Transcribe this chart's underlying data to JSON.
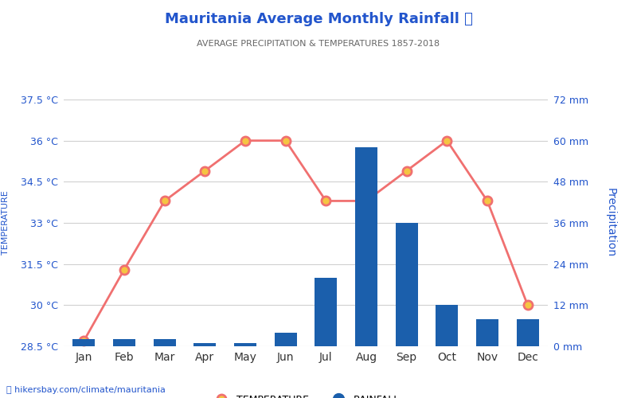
{
  "title": "Mauritania Average Monthly Rainfall ☂",
  "subtitle": "AVERAGE PRECIPITATION & TEMPERATURES 1857-2018",
  "months": [
    "Jan",
    "Feb",
    "Mar",
    "Apr",
    "May",
    "Jun",
    "Jul",
    "Aug",
    "Sep",
    "Oct",
    "Nov",
    "Dec"
  ],
  "temperature": [
    28.7,
    31.3,
    33.8,
    34.9,
    36.0,
    36.0,
    33.8,
    33.8,
    34.9,
    36.0,
    33.8,
    30.0
  ],
  "rainfall_mm": [
    2,
    2,
    2,
    1,
    1,
    4,
    20,
    58,
    36,
    12,
    8,
    8
  ],
  "temp_ylim": [
    28.5,
    37.5
  ],
  "rain_ylim": [
    0,
    72
  ],
  "temp_yticks": [
    28.5,
    30.0,
    31.5,
    33.0,
    34.5,
    36.0,
    37.5
  ],
  "temp_yticklabels": [
    "28.5 °C",
    "30 °C",
    "31.5 °C",
    "33 °C",
    "34.5 °C",
    "36 °C",
    "37.5 °C"
  ],
  "rain_yticks": [
    0,
    12,
    24,
    36,
    48,
    60,
    72
  ],
  "rain_yticklabels": [
    "0 mm",
    "12 mm",
    "24 mm",
    "36 mm",
    "48 mm",
    "60 mm",
    "72 mm"
  ],
  "bar_color": "#1b5fac",
  "line_color": "#f07070",
  "marker_face_color": "#f5c542",
  "marker_edge_color": "#f07070",
  "title_color": "#2255cc",
  "subtitle_color": "#666666",
  "left_axis_color": "#2255cc",
  "right_axis_color": "#2255cc",
  "grid_color": "#d0d0d0",
  "background_color": "#ffffff",
  "watermark_text": "hikersbay.com/climate/mauritania",
  "watermark_color": "#2255cc",
  "legend_temp_label": "TEMPERATURE",
  "legend_rain_label": "RAINFALL"
}
